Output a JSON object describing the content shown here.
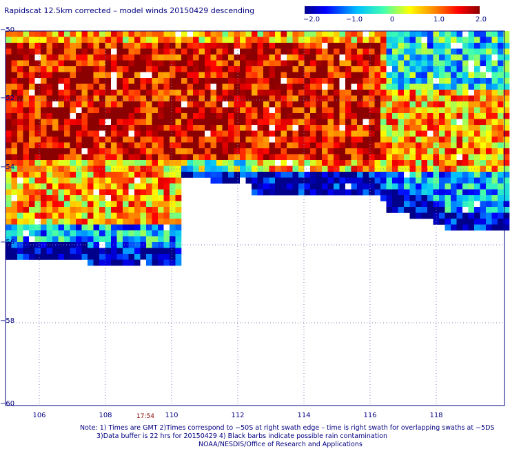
{
  "title": "Rapidscat 12.5km corrected – model winds 20150429 descending",
  "colorbar": {
    "ticks": [
      "−2.0",
      "−1.0",
      "0",
      "1.0",
      "2.0"
    ],
    "range": [
      -2.0,
      2.0
    ],
    "colors": [
      "#00008b",
      "#0000ff",
      "#00bfff",
      "#40ffb0",
      "#ffff00",
      "#ff8000",
      "#ff0000",
      "#8b0000"
    ]
  },
  "map": {
    "lat_labels": [
      "−50",
      "−52",
      "−54",
      "−56",
      "−58",
      "−60"
    ],
    "lon_labels": [
      "106",
      "108",
      "110",
      "112",
      "114",
      "116",
      "118"
    ],
    "lat_range": [
      -60,
      -50
    ],
    "lon_range": [
      105,
      120
    ],
    "time_label": "17:54",
    "field": "wind speed difference (corrected – model)"
  },
  "notes": {
    "line1": "Note: 1) Times are GMT 2)Times correspond to −50S at right swath edge – time is right swath for overlapping swaths at −5DS",
    "line2": "3)Data buffer is 22 hrs for 20150429 4) Black barbs indicate possible rain contamination",
    "line3": "NOAA/NESDIS/Office of Research and Applications"
  }
}
